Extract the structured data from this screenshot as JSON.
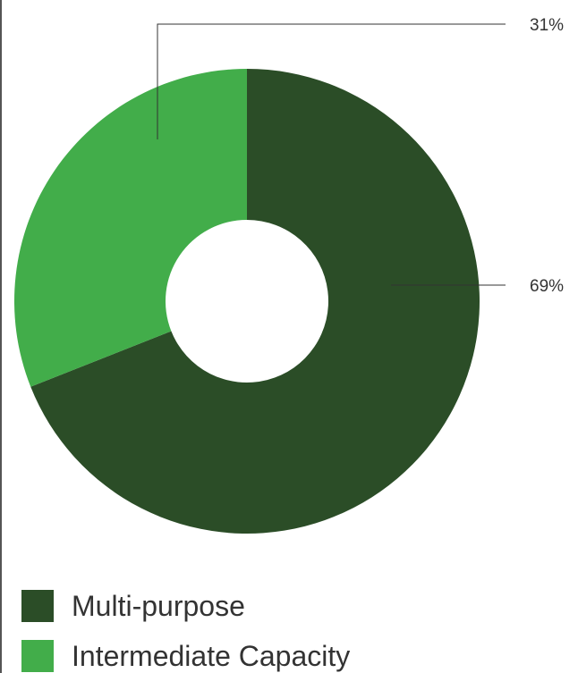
{
  "chart_data": {
    "type": "pie",
    "style": "donut",
    "title": "",
    "start_angle_deg": 0,
    "direction": "clockwise",
    "slices": [
      {
        "name": "Multi-purpose",
        "value": 69,
        "label": "69%",
        "color": "#2b4d27"
      },
      {
        "name": "Intermediate Capacity",
        "value": 31,
        "label": "31%",
        "color": "#42ad4a"
      }
    ],
    "legend_position": "bottom-left"
  }
}
